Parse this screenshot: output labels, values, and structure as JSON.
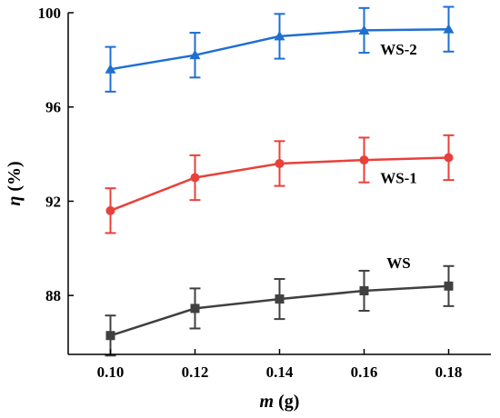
{
  "chart_data": {
    "type": "line",
    "x": [
      0.1,
      0.12,
      0.14,
      0.16,
      0.18
    ],
    "xlabel_symbol": "m",
    "xlabel_unit": " (g)",
    "ylabel_symbol": "η",
    "ylabel_unit": " (%)",
    "xlim": [
      0.09,
      0.19
    ],
    "ylim": [
      85.5,
      100
    ],
    "xticks": [
      0.1,
      0.12,
      0.14,
      0.16,
      0.18
    ],
    "xtick_labels": [
      "0.10",
      "0.12",
      "0.14",
      "0.16",
      "0.18"
    ],
    "yticks": [
      88,
      92,
      96,
      100
    ],
    "ytick_labels": [
      "88",
      "92",
      "96",
      "100"
    ],
    "grid": false,
    "series": [
      {
        "name": "WS",
        "color": "#404040",
        "marker": "square",
        "values": [
          86.3,
          87.45,
          87.85,
          88.2,
          88.4
        ],
        "errors": [
          0.85,
          0.85,
          0.85,
          0.85,
          0.85
        ]
      },
      {
        "name": "WS-1",
        "color": "#e8413a",
        "marker": "circle",
        "values": [
          91.6,
          93.0,
          93.6,
          93.75,
          93.85
        ],
        "errors": [
          0.95,
          0.95,
          0.95,
          0.95,
          0.95
        ]
      },
      {
        "name": "WS-2",
        "color": "#1f6fd1",
        "marker": "triangle",
        "values": [
          97.6,
          98.2,
          99.0,
          99.25,
          99.3
        ],
        "errors": [
          0.95,
          0.95,
          0.95,
          0.95,
          0.95
        ]
      }
    ]
  }
}
